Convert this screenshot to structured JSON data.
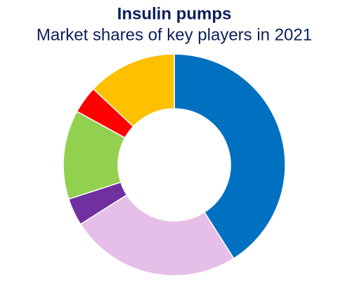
{
  "chart_data": {
    "type": "donut",
    "title": "Insulin pumps",
    "subtitle": "Market shares of key players in 2021",
    "values": [
      41,
      25,
      4,
      13,
      4,
      13
    ],
    "colors": [
      "#0070c0",
      "#e6bfe8",
      "#7030a0",
      "#92d050",
      "#ff0000",
      "#ffc000"
    ]
  }
}
